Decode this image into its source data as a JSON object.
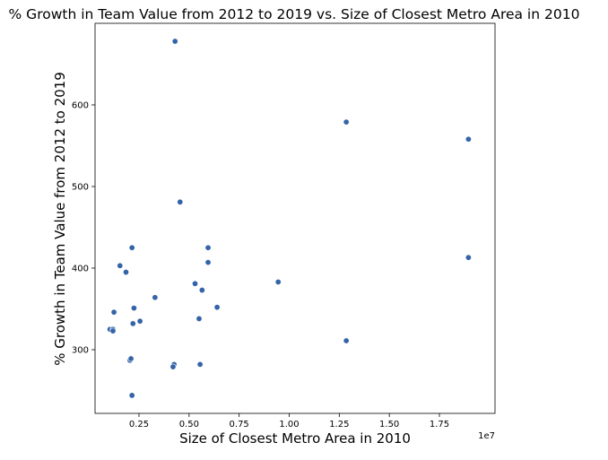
{
  "chart_data": {
    "type": "scatter",
    "title": "% Growth in Team Value from 2012 to 2019 vs. Size of Closest Metro Area in 2010",
    "xlabel": "Size of Closest Metro Area in 2010",
    "ylabel": "% Growth in Team Value from 2012 to 2019",
    "x_offset_label": "1e7",
    "x_scale_factor": 10000000,
    "xlim": [
      0.0,
      20000000.0
    ],
    "ylim": [
      220,
      700
    ],
    "grid": false,
    "marker_color": "#3464a8",
    "x_ticks": [
      {
        "value": 2500000,
        "label": "0.25"
      },
      {
        "value": 5000000,
        "label": "0.50"
      },
      {
        "value": 7500000,
        "label": "0.75"
      },
      {
        "value": 10000000,
        "label": "1.00"
      },
      {
        "value": 12500000,
        "label": "1.25"
      },
      {
        "value": 15000000,
        "label": "1.50"
      },
      {
        "value": 17500000,
        "label": "1.75"
      }
    ],
    "y_ticks": [
      {
        "value": 300,
        "label": "300"
      },
      {
        "value": 400,
        "label": "400"
      },
      {
        "value": 500,
        "label": "500"
      },
      {
        "value": 600,
        "label": "600"
      }
    ],
    "points": [
      {
        "x": 4300000,
        "y": 678
      },
      {
        "x": 12850000,
        "y": 579
      },
      {
        "x": 18950000,
        "y": 558
      },
      {
        "x": 4550000,
        "y": 481
      },
      {
        "x": 2150000,
        "y": 425
      },
      {
        "x": 5950000,
        "y": 425
      },
      {
        "x": 5950000,
        "y": 407
      },
      {
        "x": 18950000,
        "y": 413
      },
      {
        "x": 1550000,
        "y": 403
      },
      {
        "x": 1850000,
        "y": 395
      },
      {
        "x": 9450000,
        "y": 383
      },
      {
        "x": 5300000,
        "y": 381
      },
      {
        "x": 5650000,
        "y": 373
      },
      {
        "x": 3300000,
        "y": 364
      },
      {
        "x": 6400000,
        "y": 352
      },
      {
        "x": 2250000,
        "y": 351
      },
      {
        "x": 1250000,
        "y": 346
      },
      {
        "x": 5500000,
        "y": 338
      },
      {
        "x": 2550000,
        "y": 335
      },
      {
        "x": 2200000,
        "y": 332
      },
      {
        "x": 1050000,
        "y": 325
      },
      {
        "x": 1200000,
        "y": 325
      },
      {
        "x": 1200000,
        "y": 323
      },
      {
        "x": 12850000,
        "y": 311
      },
      {
        "x": 2050000,
        "y": 287
      },
      {
        "x": 2100000,
        "y": 289
      },
      {
        "x": 4250000,
        "y": 282
      },
      {
        "x": 5550000,
        "y": 282
      },
      {
        "x": 4200000,
        "y": 279
      },
      {
        "x": 2150000,
        "y": 244
      }
    ]
  }
}
